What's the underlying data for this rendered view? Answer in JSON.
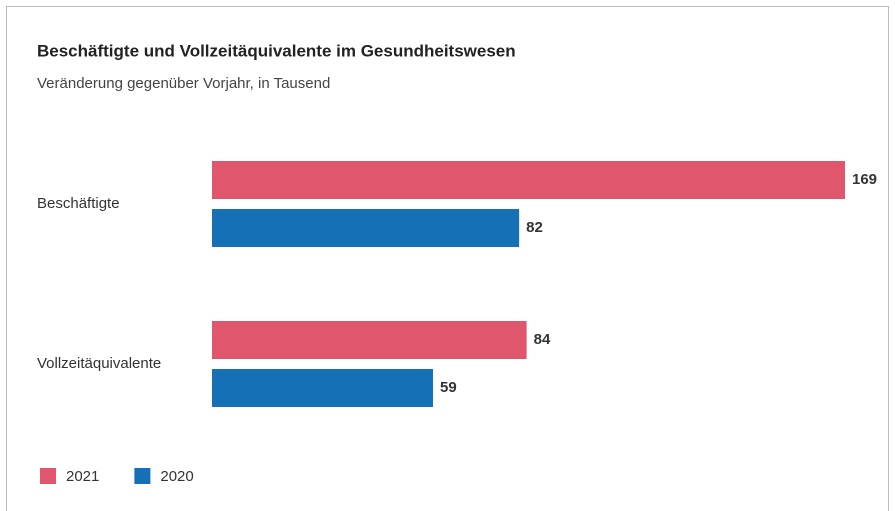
{
  "chart_data": {
    "type": "bar",
    "orientation": "horizontal",
    "title": "Beschäftigte und Vollzeitäquivalente im Gesundheitswesen",
    "subtitle": "Veränderung gegenüber Vorjahr, in Tausend",
    "categories": [
      "Beschäftigte",
      "Vollzeitäquivalente"
    ],
    "series": [
      {
        "name": "2021",
        "color": "#e0566c",
        "values": [
          169,
          84
        ]
      },
      {
        "name": "2020",
        "color": "#1570b5",
        "values": [
          82,
          59
        ]
      }
    ],
    "legend": "bottom-left",
    "grid": false
  }
}
